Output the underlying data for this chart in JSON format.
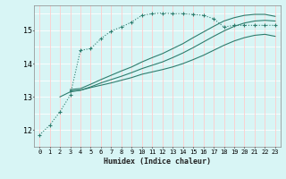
{
  "xlabel": "Humidex (Indice chaleur)",
  "ylabel": "",
  "bg_color": "#d8f5f5",
  "grid_color_h": "#ffffff",
  "grid_color_v": "#ffcccc",
  "line_color": "#2e7d6e",
  "xlim": [
    -0.5,
    23.5
  ],
  "ylim": [
    11.5,
    15.75
  ],
  "xticks": [
    0,
    1,
    2,
    3,
    4,
    5,
    6,
    7,
    8,
    9,
    10,
    11,
    12,
    13,
    14,
    15,
    16,
    17,
    18,
    19,
    20,
    21,
    22,
    23
  ],
  "yticks": [
    12,
    13,
    14,
    15
  ],
  "curve1_x": [
    0,
    1,
    2,
    3,
    4,
    5,
    6,
    7,
    8,
    9,
    10,
    11,
    12,
    13,
    14,
    15,
    16,
    17,
    18,
    19,
    20,
    21,
    22,
    23
  ],
  "curve1_y": [
    11.85,
    12.15,
    12.55,
    13.05,
    14.4,
    14.45,
    14.75,
    14.98,
    15.1,
    15.25,
    15.45,
    15.5,
    15.52,
    15.5,
    15.5,
    15.48,
    15.45,
    15.35,
    15.1,
    15.15,
    15.15,
    15.15,
    15.15,
    15.15
  ],
  "curve2_x": [
    2,
    3,
    4,
    5,
    6,
    7,
    8,
    9,
    10,
    11,
    12,
    13,
    14,
    15,
    16,
    17,
    18,
    19,
    20,
    21,
    22,
    23
  ],
  "curve2_y": [
    13.0,
    13.15,
    13.2,
    13.28,
    13.35,
    13.42,
    13.5,
    13.58,
    13.68,
    13.75,
    13.82,
    13.9,
    14.0,
    14.12,
    14.25,
    14.4,
    14.55,
    14.68,
    14.78,
    14.85,
    14.88,
    14.82
  ],
  "curve3_x": [
    3,
    4,
    5,
    6,
    7,
    8,
    9,
    10,
    11,
    12,
    13,
    14,
    15,
    16,
    17,
    18,
    19,
    20,
    21,
    22,
    23
  ],
  "curve3_y": [
    13.18,
    13.2,
    13.3,
    13.42,
    13.52,
    13.62,
    13.73,
    13.85,
    13.95,
    14.05,
    14.18,
    14.32,
    14.48,
    14.65,
    14.82,
    14.98,
    15.12,
    15.22,
    15.28,
    15.3,
    15.28
  ],
  "curve4_x": [
    3,
    4,
    5,
    6,
    7,
    8,
    9,
    10,
    11,
    12,
    13,
    14,
    15,
    16,
    17,
    18,
    19,
    20,
    21,
    22,
    23
  ],
  "curve4_y": [
    13.22,
    13.25,
    13.38,
    13.52,
    13.65,
    13.78,
    13.9,
    14.05,
    14.18,
    14.3,
    14.45,
    14.6,
    14.78,
    14.95,
    15.12,
    15.28,
    15.38,
    15.45,
    15.48,
    15.48,
    15.42
  ]
}
